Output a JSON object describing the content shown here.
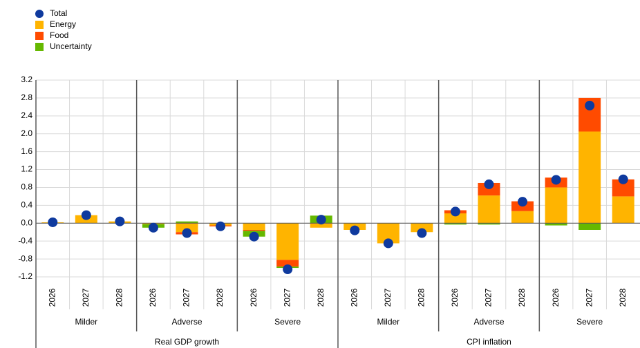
{
  "chart_data": {
    "type": "bar",
    "stacked": true,
    "categories": [
      "2026",
      "2027",
      "2028",
      "2026",
      "2027",
      "2028",
      "2026",
      "2027",
      "2028",
      "2026",
      "2027",
      "2028",
      "2026",
      "2027",
      "2028",
      "2026",
      "2027",
      "2028"
    ],
    "scenario_labels": [
      "Milder",
      "Adverse",
      "Severe",
      "Milder",
      "Adverse",
      "Severe"
    ],
    "panel_labels": [
      "Real GDP growth",
      "CPI inflation"
    ],
    "series": [
      {
        "name": "Total",
        "type": "dot",
        "color": "#0f3a9e",
        "values": [
          0.02,
          0.18,
          0.04,
          -0.1,
          -0.22,
          -0.07,
          -0.3,
          -1.03,
          0.08,
          -0.16,
          -0.45,
          -0.22,
          0.26,
          0.87,
          0.48,
          0.97,
          2.63,
          0.98
        ]
      },
      {
        "name": "Energy",
        "color": "#ffb400",
        "values": [
          0.02,
          0.18,
          0.04,
          -0.02,
          -0.2,
          -0.05,
          -0.15,
          -0.82,
          -0.1,
          -0.15,
          -0.45,
          -0.2,
          0.22,
          0.62,
          0.27,
          0.8,
          2.05,
          0.6
        ]
      },
      {
        "name": "Food",
        "color": "#ff4b00",
        "values": [
          0,
          0,
          0,
          0,
          -0.05,
          -0.02,
          -0.02,
          -0.15,
          0,
          0,
          0,
          0,
          0.07,
          0.28,
          0.22,
          0.22,
          0.75,
          0.38
        ]
      },
      {
        "name": "Uncertainty",
        "color": "#65b800",
        "values": [
          0,
          0,
          0,
          -0.08,
          0.04,
          0,
          -0.13,
          -0.03,
          0.17,
          0,
          0,
          0,
          -0.03,
          -0.03,
          0,
          -0.05,
          -0.15,
          0
        ]
      }
    ],
    "ylim": [
      -1.2,
      3.2
    ],
    "yticks": [
      3.2,
      2.8,
      2.4,
      {
        "value": 2,
        "label": "2.0"
      },
      1.6,
      1.2,
      0.8,
      0.4,
      {
        "value": 0,
        "label": "0.0"
      },
      -0.4,
      -0.8,
      -1.2
    ],
    "grid": true,
    "legend": "top-left"
  }
}
